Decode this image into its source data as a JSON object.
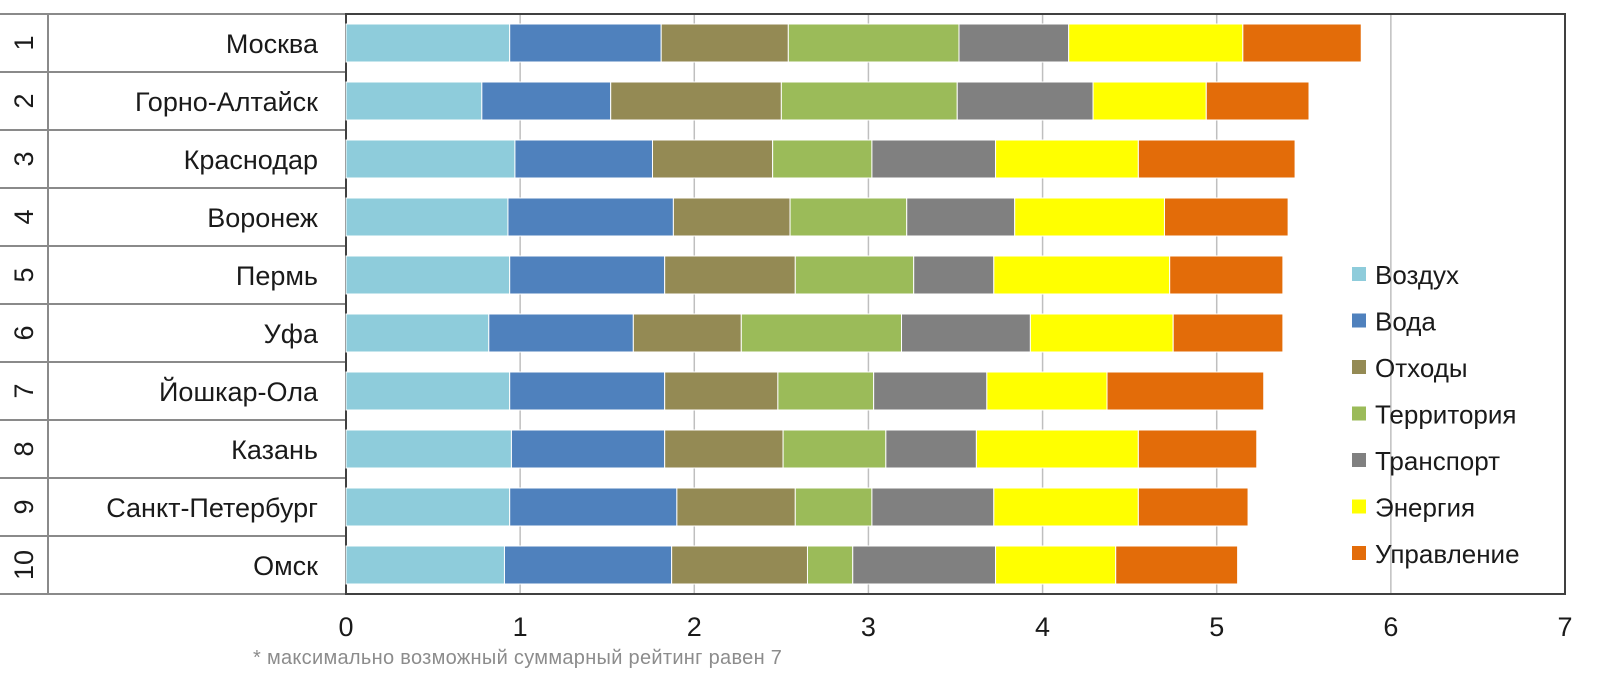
{
  "footnote": "* максимально возможный суммарный рейтинг равен 7",
  "chart_data": {
    "type": "bar",
    "orientation": "horizontal",
    "stacked": true,
    "categories": [
      "Москва",
      "Горно-Алтайск",
      "Краснодар",
      "Воронеж",
      "Пермь",
      "Уфа",
      "Йошкар-Ола",
      "Казань",
      "Санкт-Петербург",
      "Омск"
    ],
    "ranks": [
      "1",
      "2",
      "3",
      "4",
      "5",
      "6",
      "7",
      "8",
      "9",
      "10"
    ],
    "xlim": [
      0,
      7
    ],
    "x_ticks": [
      "0",
      "1",
      "2",
      "3",
      "4",
      "5",
      "6",
      "7"
    ],
    "grid": true,
    "legend_position": "right",
    "series": [
      {
        "name": "Воздух",
        "color": "#8ECCDB",
        "values": [
          0.94,
          0.78,
          0.97,
          0.93,
          0.94,
          0.82,
          0.94,
          0.95,
          0.94,
          0.91
        ]
      },
      {
        "name": "Вода",
        "color": "#4F81BD",
        "values": [
          0.87,
          0.74,
          0.79,
          0.95,
          0.89,
          0.83,
          0.89,
          0.88,
          0.96,
          0.96
        ]
      },
      {
        "name": "Отходы",
        "color": "#948A54",
        "values": [
          0.73,
          0.98,
          0.69,
          0.67,
          0.75,
          0.62,
          0.65,
          0.68,
          0.68,
          0.78
        ]
      },
      {
        "name": "Территория",
        "color": "#9BBB59",
        "values": [
          0.98,
          1.01,
          0.57,
          0.67,
          0.68,
          0.92,
          0.55,
          0.59,
          0.44,
          0.26
        ]
      },
      {
        "name": "Транспорт",
        "color": "#808080",
        "values": [
          0.63,
          0.78,
          0.71,
          0.62,
          0.46,
          0.74,
          0.65,
          0.52,
          0.7,
          0.82
        ]
      },
      {
        "name": "Энергия",
        "color": "#FFFF00",
        "values": [
          1.0,
          0.65,
          0.82,
          0.86,
          1.01,
          0.82,
          0.69,
          0.93,
          0.83,
          0.69
        ]
      },
      {
        "name": "Управление",
        "color": "#E36C09",
        "values": [
          0.68,
          0.59,
          0.9,
          0.71,
          0.65,
          0.63,
          0.9,
          0.68,
          0.63,
          0.7
        ]
      }
    ]
  }
}
